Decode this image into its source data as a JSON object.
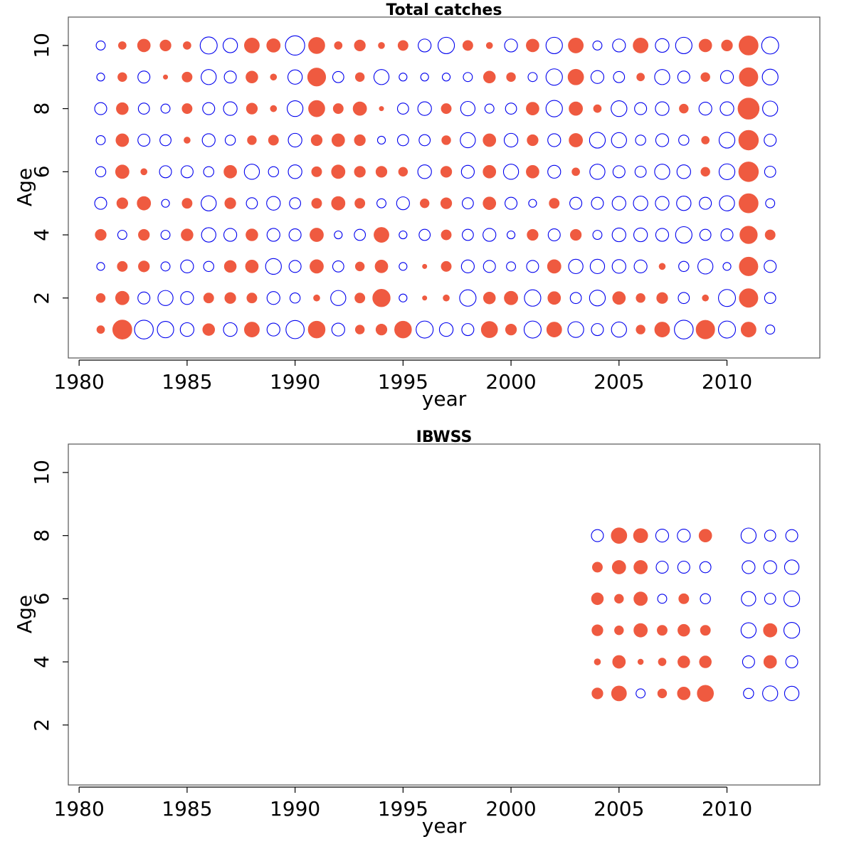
{
  "chart_data": [
    {
      "type": "scatter",
      "subtype": "bubble-residuals",
      "title": "Total catches",
      "xlabel": "year",
      "ylabel": "Age",
      "xlim": [
        1979.5,
        2014.3
      ],
      "ylim": [
        0.1,
        10.9
      ],
      "xticks": [
        1980,
        1985,
        1990,
        1995,
        2000,
        2005,
        2010
      ],
      "yticks": [
        2,
        4,
        6,
        8,
        10
      ],
      "legend": "none",
      "colors": {
        "positive": "#ef5a40",
        "negative": "#0000ee"
      },
      "encoding": "filled = positive, open = negative; value = signed bubble radius",
      "max_abs_value": 3.0,
      "ages": [
        10,
        9,
        8,
        7,
        6,
        5,
        4,
        3,
        2,
        1
      ],
      "years": [
        1981,
        1982,
        1983,
        1984,
        1985,
        1986,
        1987,
        1988,
        1989,
        1990,
        1991,
        1992,
        1993,
        1994,
        1995,
        1996,
        1997,
        1998,
        1999,
        2000,
        2001,
        2002,
        2003,
        2004,
        2005,
        2006,
        2007,
        2008,
        2009,
        2010,
        2011,
        2012
      ],
      "rows": [
        [
          -0.4,
          0.3,
          0.8,
          0.6,
          0.3,
          -1.4,
          -1.0,
          1.1,
          0.9,
          -1.8,
          1.3,
          0.3,
          0.6,
          0.2,
          0.5,
          -0.8,
          -1.3,
          0.5,
          0.2,
          -0.8,
          0.8,
          -1.3,
          1.1,
          -0.4,
          -0.8,
          1.1,
          -0.9,
          -1.3,
          0.8,
          0.6,
          1.8,
          -1.4
        ],
        [
          -0.3,
          0.4,
          -0.7,
          0.1,
          0.5,
          -1.1,
          -0.7,
          0.7,
          0.2,
          -1.0,
          1.6,
          -0.6,
          0.4,
          -1.1,
          -0.3,
          -0.3,
          -0.3,
          -0.4,
          0.7,
          0.4,
          -0.4,
          -1.3,
          1.2,
          -0.8,
          -0.6,
          0.3,
          -1.1,
          -0.7,
          0.4,
          -0.8,
          1.7,
          -1.2
        ],
        [
          -0.7,
          0.7,
          -0.6,
          -0.4,
          0.5,
          -0.7,
          -0.9,
          0.6,
          0.2,
          -1.2,
          1.3,
          0.5,
          0.9,
          0.1,
          -0.6,
          -0.9,
          0.5,
          -1.0,
          -0.4,
          -0.6,
          0.8,
          -1.3,
          0.9,
          0.3,
          -1.2,
          -0.7,
          -0.9,
          0.4,
          -0.8,
          -0.9,
          2.2,
          -1.1
        ],
        [
          -0.4,
          0.8,
          -0.7,
          -0.6,
          0.2,
          -0.8,
          -0.5,
          0.4,
          0.5,
          -0.9,
          0.6,
          0.8,
          0.6,
          -0.3,
          -0.6,
          -0.6,
          0.4,
          -1.1,
          0.8,
          -0.9,
          0.6,
          -0.8,
          0.9,
          -1.2,
          -1.1,
          -0.5,
          -0.8,
          -0.5,
          0.3,
          -1.2,
          1.9,
          -0.7
        ],
        [
          -0.5,
          0.9,
          0.2,
          -0.7,
          -0.7,
          -0.5,
          0.8,
          -1.1,
          -0.5,
          -0.9,
          0.5,
          0.9,
          0.6,
          0.6,
          0.4,
          -0.9,
          0.6,
          -0.8,
          0.8,
          -1.1,
          0.8,
          -0.8,
          0.3,
          -1.1,
          -0.7,
          -0.6,
          -1.1,
          -0.9,
          0.4,
          -1.2,
          1.9,
          -0.6
        ],
        [
          -0.7,
          0.6,
          0.9,
          -0.3,
          0.5,
          -1.1,
          0.6,
          -0.6,
          -0.9,
          -0.6,
          0.5,
          0.9,
          0.5,
          -0.4,
          -0.8,
          0.4,
          0.6,
          -0.6,
          0.8,
          -0.7,
          -0.3,
          0.5,
          -0.7,
          -0.7,
          -0.9,
          -1.0,
          -0.9,
          -1.0,
          -0.7,
          -1.1,
          1.8,
          -0.4
        ],
        [
          0.6,
          -0.4,
          0.6,
          -0.4,
          0.7,
          -1.0,
          -0.8,
          0.7,
          -0.8,
          -0.7,
          0.9,
          -0.3,
          -0.6,
          1.1,
          -0.3,
          -0.6,
          0.5,
          -0.6,
          -0.8,
          -0.3,
          0.6,
          -0.7,
          0.6,
          -0.4,
          -0.9,
          -0.9,
          -0.8,
          -1.3,
          -0.6,
          -0.7,
          1.5,
          0.5
        ],
        [
          -0.3,
          0.5,
          0.6,
          -0.4,
          -0.8,
          -0.5,
          0.7,
          0.8,
          -1.2,
          -0.7,
          0.9,
          -0.6,
          0.4,
          0.8,
          -0.3,
          0.1,
          0.5,
          -0.8,
          -0.7,
          -0.4,
          -0.7,
          0.9,
          -1.0,
          -1.0,
          -0.9,
          -0.8,
          0.2,
          -0.5,
          -1.1,
          -0.3,
          1.7,
          -0.7
        ],
        [
          0.4,
          0.9,
          -0.7,
          -1.1,
          -0.8,
          0.5,
          0.6,
          0.5,
          -0.8,
          -0.5,
          0.2,
          -1.1,
          0.5,
          1.5,
          -0.3,
          0.1,
          0.2,
          -1.3,
          0.7,
          0.9,
          -1.3,
          0.8,
          -0.6,
          -1.2,
          0.8,
          0.4,
          0.6,
          -0.6,
          0.2,
          -1.4,
          1.7,
          -0.6
        ],
        [
          0.3,
          1.8,
          -1.7,
          -1.3,
          -0.9,
          0.7,
          -0.9,
          1.1,
          -0.8,
          -1.6,
          1.4,
          -0.8,
          0.4,
          0.6,
          1.4,
          -1.4,
          -0.9,
          -0.7,
          1.3,
          0.6,
          -1.4,
          1.1,
          -1.2,
          -0.7,
          -1.1,
          0.4,
          1.1,
          -1.7,
          1.7,
          -1.4,
          1.1,
          -0.4
        ]
      ]
    },
    {
      "type": "scatter",
      "subtype": "bubble-residuals",
      "title": "IBWSS",
      "xlabel": "year",
      "ylabel": "Age",
      "xlim": [
        1979.5,
        2014.3
      ],
      "ylim": [
        0.1,
        10.9
      ],
      "xticks": [
        1980,
        1985,
        1990,
        1995,
        2000,
        2005,
        2010
      ],
      "yticks": [
        2,
        4,
        6,
        8,
        10
      ],
      "legend": "none",
      "colors": {
        "positive": "#ef5a40",
        "negative": "#0000ee"
      },
      "encoding": "filled = positive, open = negative; value = signed bubble radius",
      "max_abs_value": 3.0,
      "ages": [
        8,
        7,
        6,
        5,
        4,
        3
      ],
      "years": [
        2004,
        2005,
        2006,
        2007,
        2008,
        2009,
        2011,
        2012,
        2013
      ],
      "rows": [
        [
          -0.7,
          1.2,
          1.0,
          -0.8,
          -0.8,
          0.8,
          -1.1,
          -0.6,
          -0.7
        ],
        [
          0.5,
          0.9,
          0.9,
          -0.7,
          -0.7,
          -0.6,
          -0.8,
          -0.8,
          -1.0
        ],
        [
          0.7,
          0.4,
          0.9,
          -0.4,
          0.5,
          -0.5,
          -1.0,
          -0.6,
          -1.2
        ],
        [
          0.6,
          0.4,
          0.9,
          0.5,
          0.7,
          0.5,
          -1.1,
          0.9,
          -1.2
        ],
        [
          0.2,
          0.8,
          0.15,
          0.3,
          0.7,
          0.7,
          -0.7,
          0.8,
          -0.7
        ],
        [
          0.6,
          1.1,
          -0.4,
          0.4,
          0.8,
          1.3,
          -0.5,
          -1.1,
          -1.0
        ]
      ]
    }
  ]
}
